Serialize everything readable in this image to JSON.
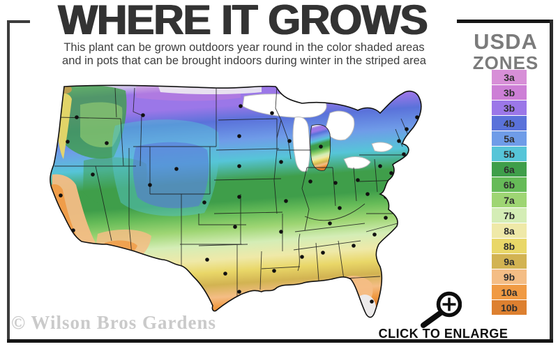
{
  "header": {
    "title": "WHERE IT GROWS",
    "subtitle_line1": "This plant can be grown outdoors year round in the color shaded areas",
    "subtitle_line2": "and in pots that can be brought indoors during winter in the striped area"
  },
  "legend": {
    "heading_line1": "USDA",
    "heading_line2": "ZONES",
    "zones": [
      {
        "label": "3a",
        "color": "#d78fd7"
      },
      {
        "label": "3b",
        "color": "#cd7fd6"
      },
      {
        "label": "3b",
        "color": "#9b77e8"
      },
      {
        "label": "4b",
        "color": "#5a72da"
      },
      {
        "label": "5a",
        "color": "#6f9ce8"
      },
      {
        "label": "5b",
        "color": "#56c5d8"
      },
      {
        "label": "6a",
        "color": "#3f9e4a"
      },
      {
        "label": "6b",
        "color": "#66bb58"
      },
      {
        "label": "7a",
        "color": "#9ed573"
      },
      {
        "label": "7b",
        "color": "#d4edb6"
      },
      {
        "label": "8a",
        "color": "#efe9a8"
      },
      {
        "label": "8b",
        "color": "#e9d768"
      },
      {
        "label": "9a",
        "color": "#d2b352"
      },
      {
        "label": "9b",
        "color": "#f4bd85"
      },
      {
        "label": "10a",
        "color": "#f09a43"
      },
      {
        "label": "10b",
        "color": "#dd8030"
      }
    ]
  },
  "map": {
    "watermark": "© Wilson Bros Gardens",
    "city_dots": [
      [
        65,
        58
      ],
      [
        52,
        93
      ],
      [
        108,
        95
      ],
      [
        160,
        55
      ],
      [
        300,
        42
      ],
      [
        345,
        52
      ],
      [
        298,
        85
      ],
      [
        370,
        92
      ],
      [
        415,
        100
      ],
      [
        527,
        92
      ],
      [
        538,
        75
      ],
      [
        553,
        58
      ],
      [
        552,
        86
      ],
      [
        543,
        100
      ],
      [
        534,
        111
      ],
      [
        88,
        140
      ],
      [
        170,
        155
      ],
      [
        208,
        132
      ],
      [
        248,
        180
      ],
      [
        298,
        128
      ],
      [
        358,
        122
      ],
      [
        400,
        150
      ],
      [
        436,
        152
      ],
      [
        468,
        148
      ],
      [
        500,
        128
      ],
      [
        516,
        138
      ],
      [
        42,
        170
      ],
      [
        60,
        220
      ],
      [
        128,
        258
      ],
      [
        252,
        262
      ],
      [
        298,
        172
      ],
      [
        365,
        178
      ],
      [
        442,
        188
      ],
      [
        482,
        168
      ],
      [
        508,
        172
      ],
      [
        428,
        210
      ],
      [
        508,
        202
      ],
      [
        492,
        226
      ],
      [
        358,
        222
      ],
      [
        292,
        215
      ],
      [
        278,
        282
      ],
      [
        298,
        308
      ],
      [
        348,
        278
      ],
      [
        388,
        258
      ],
      [
        418,
        252
      ],
      [
        462,
        242
      ],
      [
        452,
        300
      ],
      [
        488,
        322
      ]
    ]
  },
  "enlarge": {
    "label": "CLICK TO ENLARGE"
  },
  "colors": {
    "title": "#333333",
    "subtitle": "#3e3e3e",
    "legend_heading": "#7b7b7b",
    "frame_dark": "#3c3c3c",
    "frame_black": "#151515",
    "watermark": "#cacaca",
    "dot": "#111111",
    "snow": "#ececec",
    "lake": "#ffffff",
    "state_line": "#1a1a1a",
    "outline": "#111111"
  }
}
